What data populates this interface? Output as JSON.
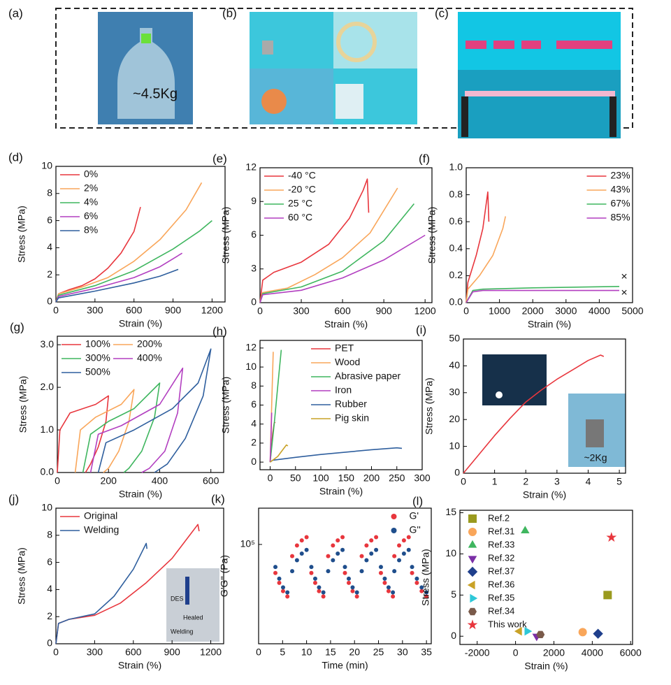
{
  "photos": {
    "labels": [
      "(a)",
      "(b)",
      "(c)"
    ],
    "annotation": "~4.5Kg"
  },
  "chart_data": [
    {
      "type": "line",
      "panel": "(d)",
      "x_label": "Strain (%)",
      "y_label": "Stress (MPa)",
      "xlim": [
        0,
        1300
      ],
      "xticks": [
        0,
        300,
        600,
        900,
        1200
      ],
      "ylim": [
        0,
        10
      ],
      "yticks": [
        0,
        2,
        4,
        6,
        8,
        10
      ],
      "legend": "upper left",
      "series": [
        {
          "name": "0%",
          "color": "#e8363d",
          "x": [
            0,
            20,
            100,
            200,
            300,
            400,
            500,
            600,
            650
          ],
          "values": [
            0,
            0.6,
            0.9,
            1.2,
            1.7,
            2.5,
            3.6,
            5.2,
            7.0
          ]
        },
        {
          "name": "2%",
          "color": "#f9a65a",
          "x": [
            0,
            20,
            200,
            400,
            600,
            800,
            1000,
            1120
          ],
          "values": [
            0,
            0.6,
            1.1,
            1.8,
            3.0,
            4.6,
            6.8,
            8.8
          ]
        },
        {
          "name": "4%",
          "color": "#3fb65f",
          "x": [
            0,
            20,
            300,
            600,
            900,
            1100,
            1200
          ],
          "values": [
            0,
            0.5,
            1.2,
            2.3,
            3.9,
            5.2,
            6.0
          ]
        },
        {
          "name": "6%",
          "color": "#b23fc0",
          "x": [
            0,
            20,
            300,
            600,
            800,
            970
          ],
          "values": [
            0,
            0.4,
            1.0,
            1.8,
            2.6,
            3.6
          ]
        },
        {
          "name": "8%",
          "color": "#2f5f9e",
          "x": [
            0,
            20,
            300,
            600,
            800,
            940
          ],
          "values": [
            0,
            0.3,
            0.8,
            1.4,
            1.9,
            2.4
          ]
        }
      ]
    },
    {
      "type": "line",
      "panel": "(e)",
      "x_label": "Strain (%)",
      "y_label": "Stress (MPa)",
      "xlim": [
        0,
        1250
      ],
      "xticks": [
        0,
        300,
        600,
        900,
        1200
      ],
      "ylim": [
        0,
        12
      ],
      "yticks": [
        0,
        3,
        6,
        9,
        12
      ],
      "legend": "upper left",
      "series": [
        {
          "name": "-40 °C",
          "color": "#e8363d",
          "x": [
            0,
            20,
            100,
            300,
            500,
            650,
            750,
            780,
            790
          ],
          "values": [
            0,
            2,
            2.7,
            3.6,
            5.2,
            7.5,
            10,
            11,
            8
          ]
        },
        {
          "name": "-20 °C",
          "color": "#f9a65a",
          "x": [
            0,
            20,
            200,
            400,
            600,
            800,
            1000
          ],
          "values": [
            0,
            0.9,
            1.3,
            2.5,
            4.0,
            6.2,
            10.2
          ]
        },
        {
          "name": "25 °C",
          "color": "#3fb65f",
          "x": [
            0,
            20,
            300,
            600,
            900,
            1120
          ],
          "values": [
            0,
            0.8,
            1.4,
            2.8,
            5.5,
            8.8
          ]
        },
        {
          "name": "60 °C",
          "color": "#b23fc0",
          "x": [
            0,
            20,
            300,
            600,
            900,
            1200
          ],
          "values": [
            0,
            0.7,
            1.1,
            2.2,
            3.8,
            6.0
          ]
        }
      ]
    },
    {
      "type": "line",
      "panel": "(f)",
      "x_label": "Strain (%)",
      "y_label": "Stress (MPa)",
      "xlim": [
        0,
        5000
      ],
      "xticks": [
        0,
        1000,
        2000,
        3000,
        4000,
        5000
      ],
      "ylim": [
        0,
        1.0
      ],
      "yticks": [
        {
          "value": 0,
          "label": "0.0"
        },
        0.2,
        0.4,
        0.6,
        0.8,
        {
          "value": 1.0,
          "label": "1.0"
        }
      ],
      "legend": "upper right",
      "markers": [
        {
          "x": 4750,
          "y": 0.19,
          "label": "×"
        },
        {
          "x": 4750,
          "y": 0.07,
          "label": "×"
        }
      ],
      "series": [
        {
          "name": "23%",
          "color": "#e8363d",
          "x": [
            0,
            50,
            300,
            500,
            650,
            680
          ],
          "values": [
            0,
            0.15,
            0.35,
            0.55,
            0.82,
            0.6
          ]
        },
        {
          "name": "43%",
          "color": "#f9a65a",
          "x": [
            0,
            50,
            400,
            800,
            1100,
            1180
          ],
          "values": [
            0,
            0.1,
            0.2,
            0.35,
            0.55,
            0.64
          ]
        },
        {
          "name": "67%",
          "color": "#3fb65f",
          "x": [
            0,
            200,
            500,
            2000,
            4600
          ],
          "values": [
            0,
            0.09,
            0.1,
            0.11,
            0.12
          ]
        },
        {
          "name": "85%",
          "color": "#b23fc0",
          "x": [
            0,
            200,
            500,
            2000,
            4600
          ],
          "values": [
            0,
            0.08,
            0.09,
            0.09,
            0.09
          ]
        }
      ]
    },
    {
      "type": "line",
      "panel": "(g)",
      "x_label": "Strain (%)",
      "y_label": "Stress (MPa)",
      "xlim": [
        0,
        650
      ],
      "xticks": [
        0,
        200,
        400,
        600
      ],
      "ylim": [
        0,
        3.2
      ],
      "yticks": [
        {
          "value": 0,
          "label": "0.0"
        },
        {
          "value": 1,
          "label": "1.0"
        },
        {
          "value": 2,
          "label": "2.0"
        },
        {
          "value": 3,
          "label": "3.0"
        }
      ],
      "legend": "upper left",
      "legend_columns": 2,
      "series": [
        {
          "name": "100%",
          "color": "#e8363d",
          "x": [
            0,
            10,
            50,
            150,
            200,
            190,
            160,
            130,
            110
          ],
          "values": [
            0,
            1.0,
            1.4,
            1.6,
            1.8,
            1.2,
            0.6,
            0.2,
            0
          ]
        },
        {
          "name": "200%",
          "color": "#f9a65a",
          "x": [
            70,
            90,
            150,
            250,
            300,
            280,
            240,
            200,
            180
          ],
          "values": [
            0,
            1.0,
            1.3,
            1.6,
            1.95,
            1.2,
            0.5,
            0.1,
            0
          ]
        },
        {
          "name": "300%",
          "color": "#3fb65f",
          "x": [
            100,
            130,
            200,
            300,
            400,
            380,
            330,
            280,
            260
          ],
          "values": [
            0,
            0.9,
            1.2,
            1.5,
            2.1,
            1.3,
            0.5,
            0.1,
            0
          ]
        },
        {
          "name": "400%",
          "color": "#b23fc0",
          "x": [
            130,
            160,
            250,
            400,
            490,
            470,
            420,
            360,
            330
          ],
          "values": [
            0,
            0.9,
            1.1,
            1.6,
            2.45,
            1.4,
            0.5,
            0.1,
            0
          ]
        },
        {
          "name": "500%",
          "color": "#2f5f9e",
          "x": [
            160,
            190,
            300,
            450,
            550,
            600,
            570,
            500,
            430,
            380
          ],
          "values": [
            0,
            0.7,
            1.0,
            1.5,
            2.1,
            2.9,
            1.8,
            0.8,
            0.2,
            0
          ]
        }
      ]
    },
    {
      "type": "line",
      "panel": "(h)",
      "x_label": "Strain (%)",
      "y_label": "Stress (MPa)",
      "xlim": [
        -20,
        300
      ],
      "xticks": [
        0,
        50,
        100,
        150,
        200,
        250,
        300
      ],
      "ylim": [
        -0.8,
        12.8
      ],
      "yticks": [
        0,
        2,
        4,
        6,
        8,
        10,
        12
      ],
      "legend": "upper right",
      "series": [
        {
          "name": "PET",
          "color": "#e8363d",
          "x": [
            0,
            5,
            8,
            10
          ],
          "values": [
            0,
            3,
            4.1,
            4.2
          ]
        },
        {
          "name": "Wood",
          "color": "#f9a65a",
          "x": [
            0,
            3,
            6
          ],
          "values": [
            0,
            6,
            11.6
          ]
        },
        {
          "name": "Abrasive paper",
          "color": "#3fb65f",
          "x": [
            0,
            8,
            15,
            22
          ],
          "values": [
            0,
            4,
            8,
            11.8
          ]
        },
        {
          "name": "Iron",
          "color": "#b23fc0",
          "x": [
            0,
            2,
            3
          ],
          "values": [
            0,
            3,
            5.2
          ]
        },
        {
          "name": "Rubber",
          "color": "#2f5f9e",
          "x": [
            0,
            5,
            50,
            100,
            200,
            250,
            260
          ],
          "values": [
            0,
            0.2,
            0.5,
            0.8,
            1.3,
            1.5,
            1.45
          ]
        },
        {
          "name": "Pig skin",
          "color": "#c9a227",
          "x": [
            0,
            15,
            25,
            32,
            35
          ],
          "values": [
            0,
            0.6,
            1.3,
            1.8,
            1.7
          ]
        }
      ]
    },
    {
      "type": "line",
      "panel": "(i)",
      "x_label": "Strain (%)",
      "y_label": "Stress (MPa)",
      "inset_text": "~2Kg",
      "xlim": [
        0,
        5.2
      ],
      "xticks": [
        0,
        1,
        2,
        3,
        4,
        5
      ],
      "ylim": [
        0,
        50
      ],
      "yticks": [
        0,
        10,
        20,
        30,
        40,
        50
      ],
      "series": [
        {
          "color": "#e8363d",
          "x": [
            0,
            0.5,
            1,
            1.5,
            2,
            2.5,
            3,
            3.5,
            4,
            4.4,
            4.5
          ],
          "values": [
            0,
            7,
            14,
            20.5,
            26.5,
            31,
            35,
            38.5,
            42,
            44,
            43.5
          ]
        }
      ]
    },
    {
      "type": "line",
      "panel": "(j)",
      "x_label": "Strain (%)",
      "y_label": "Stress (MPa)",
      "inset_texts": [
        "DES",
        "Healed",
        "Welding"
      ],
      "xlim": [
        0,
        1300
      ],
      "xticks": [
        0,
        300,
        600,
        900,
        1200
      ],
      "ylim": [
        0,
        10
      ],
      "yticks": [
        0,
        2,
        4,
        6,
        8,
        10
      ],
      "legend": "upper left",
      "series": [
        {
          "name": "Original",
          "color": "#e8363d",
          "x": [
            0,
            20,
            100,
            300,
            500,
            700,
            900,
            1100,
            1110
          ],
          "values": [
            0,
            1.5,
            1.8,
            2.1,
            3.0,
            4.5,
            6.3,
            8.8,
            8.3
          ]
        },
        {
          "name": "Welding",
          "color": "#2f5f9e",
          "x": [
            0,
            20,
            100,
            300,
            450,
            600,
            700,
            705
          ],
          "values": [
            0,
            1.5,
            1.8,
            2.2,
            3.5,
            5.5,
            7.4,
            7.0
          ]
        }
      ]
    },
    {
      "type": "scatter",
      "panel": "(k)",
      "x_label": "Time (min)",
      "y_label": "G'G'' (Pa)",
      "ylog": true,
      "xlim": [
        0,
        36
      ],
      "xticks": [
        0,
        5,
        10,
        15,
        20,
        25,
        30,
        35
      ],
      "ylim": [
        15000,
        200000
      ],
      "yticks": [
        {
          "value": 100000,
          "label": "10⁵"
        }
      ],
      "legend": "upper right",
      "series": [
        {
          "name": "G'",
          "color": "#e8363d",
          "marker": "circle",
          "x": [
            3.5,
            4.3,
            5.1,
            6.0,
            7,
            8,
            9,
            10,
            11,
            11.8,
            12.6,
            13.5,
            14.5,
            15.5,
            16.5,
            17.5,
            18,
            18.8,
            19.6,
            20.5,
            21.5,
            22.5,
            23.5,
            24.5,
            25.5,
            26.3,
            27.1,
            28.0,
            28.3,
            29.3,
            30.3,
            31.3,
            32,
            33,
            34,
            35
          ],
          "values": [
            58000,
            48000,
            41000,
            37000,
            80000,
            98000,
            108000,
            115000,
            58000,
            48000,
            41000,
            37000,
            80000,
            98000,
            108000,
            115000,
            58000,
            48000,
            41000,
            37000,
            80000,
            98000,
            108000,
            115000,
            58000,
            48000,
            41000,
            37000,
            80000,
            98000,
            108000,
            115000,
            58000,
            48000,
            41000,
            37000
          ]
        },
        {
          "name": "G''",
          "color": "#1f4e8c",
          "marker": "circle",
          "x": [
            3.5,
            4.3,
            5.1,
            6.0,
            7,
            8,
            9,
            10,
            11,
            11.8,
            12.6,
            13.5,
            14.5,
            15.5,
            16.5,
            17.5,
            18,
            18.8,
            19.6,
            20.5,
            21.5,
            22.5,
            23.5,
            24.5,
            25.5,
            26.3,
            27.1,
            28.0,
            28.3,
            29.3,
            30.3,
            31.3,
            32,
            33,
            34,
            35
          ],
          "values": [
            65000,
            52000,
            44000,
            40000,
            60000,
            74000,
            84000,
            90000,
            65000,
            52000,
            44000,
            40000,
            60000,
            74000,
            84000,
            90000,
            65000,
            52000,
            44000,
            40000,
            60000,
            74000,
            84000,
            90000,
            65000,
            52000,
            44000,
            40000,
            60000,
            74000,
            84000,
            90000,
            65000,
            52000,
            44000,
            40000
          ]
        }
      ]
    },
    {
      "type": "scatter",
      "panel": "(l)",
      "x_label": "Strain (%)",
      "y_label": "Stress (MPa)",
      "xlim": [
        -2900,
        6100
      ],
      "xticks": [
        -2000,
        0,
        2000,
        4000,
        6000
      ],
      "ylim": [
        -1,
        15.3
      ],
      "yticks": [
        0,
        5,
        10,
        15
      ],
      "legend": "upper left",
      "series": [
        {
          "name": "Ref.2",
          "color": "#9a9a1e",
          "marker": "square",
          "x": [
            4800
          ],
          "values": [
            5
          ]
        },
        {
          "name": "Ref.31",
          "color": "#f9a65a",
          "marker": "circle",
          "x": [
            3500
          ],
          "values": [
            0.5
          ]
        },
        {
          "name": "Ref.33",
          "color": "#3fb65f",
          "marker": "triangle-up",
          "x": [
            500
          ],
          "values": [
            12.8
          ]
        },
        {
          "name": "Ref.32",
          "color": "#7b2fa6",
          "marker": "triangle-down",
          "x": [
            1100
          ],
          "values": [
            0
          ]
        },
        {
          "name": "Ref.37",
          "color": "#1f3f8c",
          "marker": "diamond",
          "x": [
            4300
          ],
          "values": [
            0.3
          ]
        },
        {
          "name": "Ref.36",
          "color": "#c9a227",
          "marker": "triangle-left",
          "x": [
            200
          ],
          "values": [
            0.6
          ]
        },
        {
          "name": "Ref.35",
          "color": "#2ec8d8",
          "marker": "triangle-right",
          "x": [
            600
          ],
          "values": [
            0.6
          ]
        },
        {
          "name": "Ref.34",
          "color": "#7a5a4a",
          "marker": "hexagon",
          "x": [
            1300
          ],
          "values": [
            0.2
          ]
        },
        {
          "name": "This work",
          "color": "#e8363d",
          "marker": "star",
          "x": [
            5000
          ],
          "values": [
            12
          ]
        }
      ]
    }
  ]
}
